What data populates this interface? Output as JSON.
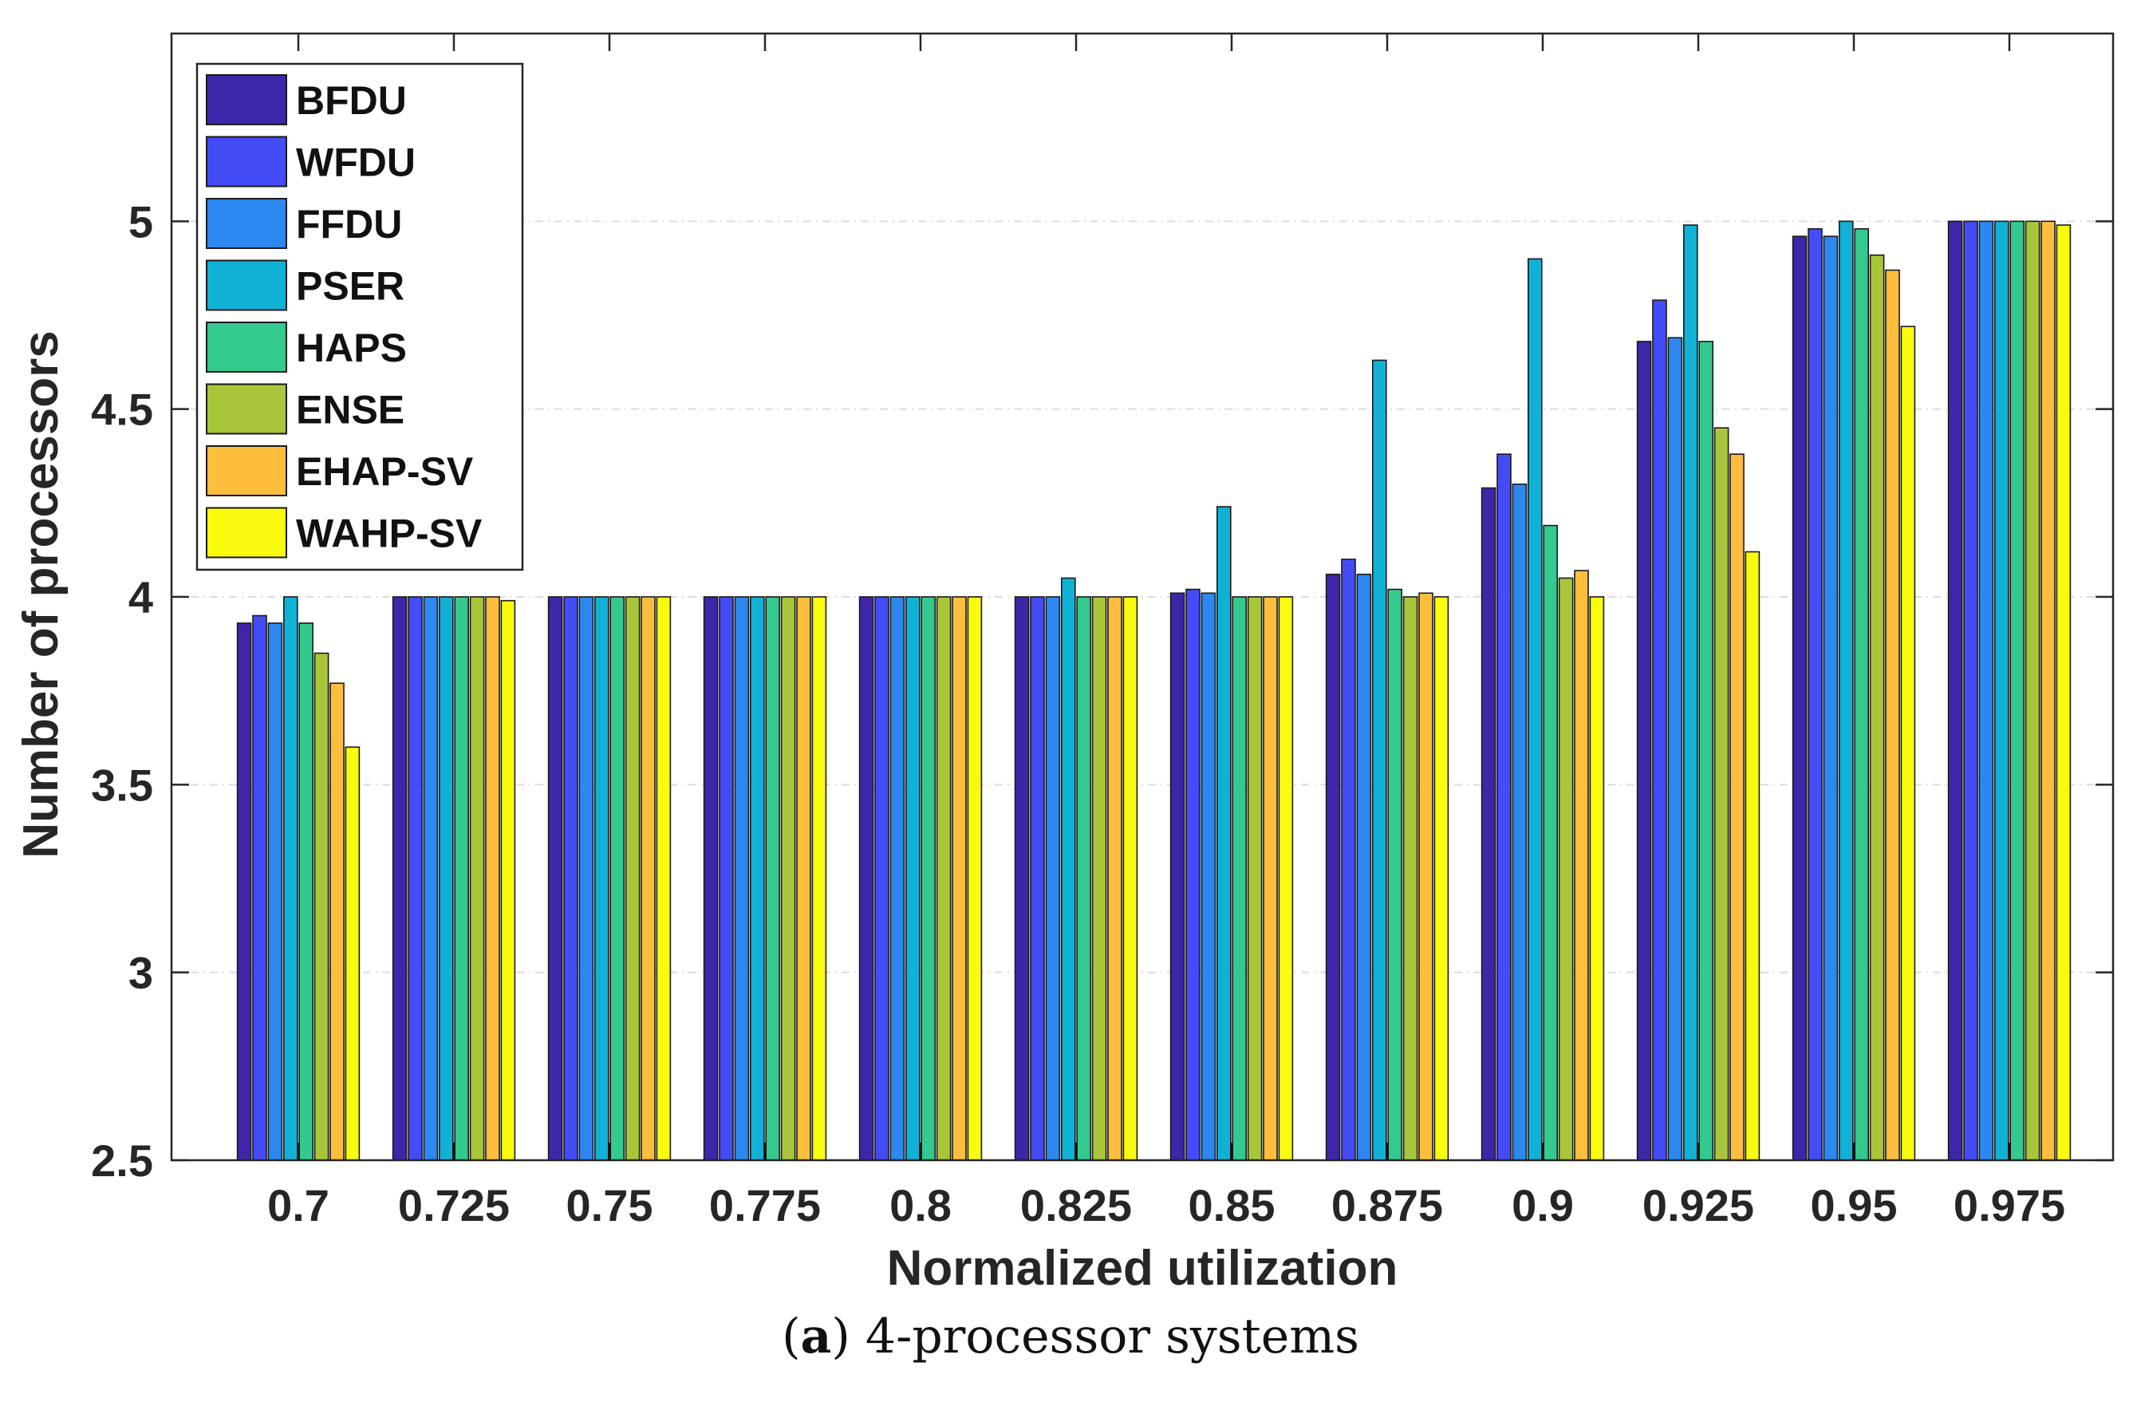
{
  "chart_data": {
    "type": "bar",
    "title": "",
    "xlabel": "Normalized utilization",
    "ylabel": "Number of processors",
    "ylim": [
      2.5,
      5.5
    ],
    "yticks": [
      2.5,
      3,
      3.5,
      4,
      4.5,
      5
    ],
    "ytick_labels": [
      "2.5",
      "3",
      "3.5",
      "4",
      "4.5",
      "5"
    ],
    "grid": true,
    "legend_position": "top-left",
    "categories": [
      "0.7",
      "0.725",
      "0.75",
      "0.775",
      "0.8",
      "0.825",
      "0.85",
      "0.875",
      "0.9",
      "0.925",
      "0.95",
      "0.975"
    ],
    "series": [
      {
        "name": "BFDU",
        "color": "#3e26a8",
        "values": [
          3.93,
          4.0,
          4.0,
          4.0,
          4.0,
          4.0,
          4.01,
          4.06,
          4.29,
          4.68,
          4.96,
          5.0
        ]
      },
      {
        "name": "WFDU",
        "color": "#434cf5",
        "values": [
          3.95,
          4.0,
          4.0,
          4.0,
          4.0,
          4.0,
          4.02,
          4.1,
          4.38,
          4.79,
          4.98,
          5.0
        ]
      },
      {
        "name": "FFDU",
        "color": "#2d88f0",
        "values": [
          3.93,
          4.0,
          4.0,
          4.0,
          4.0,
          4.0,
          4.01,
          4.06,
          4.3,
          4.69,
          4.96,
          5.0
        ]
      },
      {
        "name": "PSER",
        "color": "#11b1d6",
        "values": [
          4.0,
          4.0,
          4.0,
          4.0,
          4.0,
          4.05,
          4.24,
          4.63,
          4.9,
          4.99,
          5.0,
          5.0
        ]
      },
      {
        "name": "HAPS",
        "color": "#34c98f",
        "values": [
          3.93,
          4.0,
          4.0,
          4.0,
          4.0,
          4.0,
          4.0,
          4.02,
          4.19,
          4.68,
          4.98,
          5.0
        ]
      },
      {
        "name": "ENSE",
        "color": "#a9c63a",
        "values": [
          3.85,
          4.0,
          4.0,
          4.0,
          4.0,
          4.0,
          4.0,
          4.0,
          4.05,
          4.45,
          4.91,
          5.0
        ]
      },
      {
        "name": "EHAP-SV",
        "color": "#fdbe3d",
        "values": [
          3.77,
          4.0,
          4.0,
          4.0,
          4.0,
          4.0,
          4.0,
          4.01,
          4.07,
          4.38,
          4.87,
          5.0
        ]
      },
      {
        "name": "WAHP-SV",
        "color": "#f9fb0e",
        "values": [
          3.6,
          3.99,
          4.0,
          4.0,
          4.0,
          4.0,
          4.0,
          4.0,
          4.0,
          4.12,
          4.72,
          4.99
        ]
      }
    ]
  },
  "caption": {
    "label": "a",
    "text": "4-processor systems"
  }
}
